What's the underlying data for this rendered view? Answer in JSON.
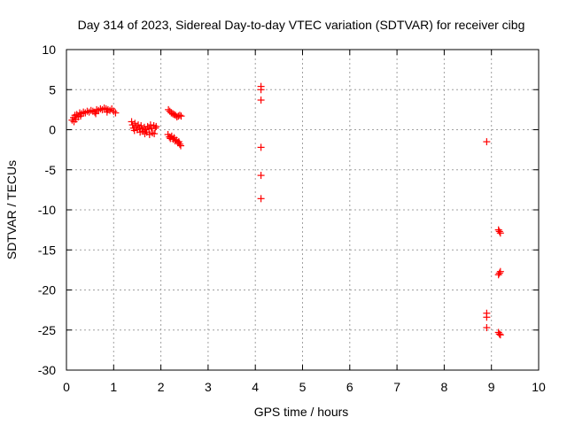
{
  "chart_data": {
    "type": "scatter",
    "title": "Day 314 of 2023, Sidereal Day-to-day VTEC variation (SDTVAR) for receiver cibg",
    "xlabel": "GPS time / hours",
    "ylabel": "SDTVAR / TECUs",
    "xlim": [
      0,
      10
    ],
    "ylim": [
      -30,
      10
    ],
    "xticks": [
      0,
      1,
      2,
      3,
      4,
      5,
      6,
      7,
      8,
      9,
      10
    ],
    "yticks": [
      10,
      5,
      0,
      -5,
      -10,
      -15,
      -20,
      -25,
      -30
    ],
    "grid": true,
    "marker": "+",
    "color": "#ff0000",
    "series": [
      {
        "name": "SDTVAR",
        "points": [
          [
            0.12,
            1.2
          ],
          [
            0.15,
            1.5
          ],
          [
            0.18,
            1.8
          ],
          [
            0.22,
            1.9
          ],
          [
            0.25,
            1.6
          ],
          [
            0.28,
            2.1
          ],
          [
            0.32,
            2.0
          ],
          [
            0.36,
            2.2
          ],
          [
            0.4,
            2.1
          ],
          [
            0.44,
            2.3
          ],
          [
            0.48,
            2.2
          ],
          [
            0.52,
            2.4
          ],
          [
            0.56,
            2.3
          ],
          [
            0.6,
            2.2
          ],
          [
            0.64,
            2.5
          ],
          [
            0.68,
            2.4
          ],
          [
            0.72,
            2.6
          ],
          [
            0.76,
            2.5
          ],
          [
            0.8,
            2.7
          ],
          [
            0.84,
            2.6
          ],
          [
            0.88,
            2.5
          ],
          [
            0.92,
            2.4
          ],
          [
            0.96,
            2.6
          ],
          [
            1.0,
            2.3
          ],
          [
            1.04,
            2.1
          ],
          [
            0.16,
            1.0
          ],
          [
            0.2,
            1.3
          ],
          [
            0.3,
            1.7
          ],
          [
            0.62,
            2.0
          ],
          [
            0.86,
            2.2
          ],
          [
            1.38,
            1.0
          ],
          [
            1.4,
            0.6
          ],
          [
            1.42,
            0.2
          ],
          [
            1.45,
            0.8
          ],
          [
            1.48,
            0.4
          ],
          [
            1.5,
            0.0
          ],
          [
            1.52,
            0.6
          ],
          [
            1.55,
            0.2
          ],
          [
            1.58,
            0.5
          ],
          [
            1.6,
            0.1
          ],
          [
            1.62,
            -0.2
          ],
          [
            1.65,
            0.3
          ],
          [
            1.68,
            0.0
          ],
          [
            1.7,
            -0.3
          ],
          [
            1.72,
            0.4
          ],
          [
            1.75,
            0.1
          ],
          [
            1.78,
            0.6
          ],
          [
            1.8,
            0.2
          ],
          [
            1.82,
            -0.4
          ],
          [
            1.85,
            0.5
          ],
          [
            1.88,
            0.2
          ],
          [
            1.9,
            0.4
          ],
          [
            1.44,
            -0.1
          ],
          [
            1.56,
            -0.3
          ],
          [
            1.66,
            -0.5
          ],
          [
            1.76,
            -0.6
          ],
          [
            1.86,
            -0.5
          ],
          [
            2.15,
            -0.6
          ],
          [
            2.18,
            -0.9
          ],
          [
            2.2,
            -1.1
          ],
          [
            2.23,
            -0.8
          ],
          [
            2.26,
            -1.2
          ],
          [
            2.28,
            -1.0
          ],
          [
            2.3,
            -1.4
          ],
          [
            2.33,
            -1.3
          ],
          [
            2.36,
            -1.6
          ],
          [
            2.38,
            -1.5
          ],
          [
            2.4,
            -1.8
          ],
          [
            2.42,
            -2.0
          ],
          [
            2.16,
            2.5
          ],
          [
            2.19,
            2.3
          ],
          [
            2.22,
            2.1
          ],
          [
            2.25,
            2.0
          ],
          [
            2.28,
            1.9
          ],
          [
            2.31,
            1.8
          ],
          [
            2.34,
            1.6
          ],
          [
            2.37,
            1.7
          ],
          [
            2.4,
            1.8
          ],
          [
            2.43,
            1.7
          ],
          [
            4.12,
            5.4
          ],
          [
            4.12,
            5.0
          ],
          [
            4.12,
            3.7
          ],
          [
            4.12,
            -2.2
          ],
          [
            4.12,
            -5.7
          ],
          [
            4.12,
            -8.6
          ],
          [
            8.9,
            -1.5
          ],
          [
            8.9,
            -22.9
          ],
          [
            8.9,
            -23.4
          ],
          [
            8.9,
            -24.7
          ],
          [
            9.15,
            -12.5
          ],
          [
            9.17,
            -12.7
          ],
          [
            9.19,
            -12.9
          ],
          [
            9.15,
            -18.1
          ],
          [
            9.17,
            -17.9
          ],
          [
            9.19,
            -17.7
          ],
          [
            9.15,
            -25.3
          ],
          [
            9.17,
            -25.5
          ],
          [
            9.19,
            -25.6
          ]
        ]
      }
    ]
  }
}
